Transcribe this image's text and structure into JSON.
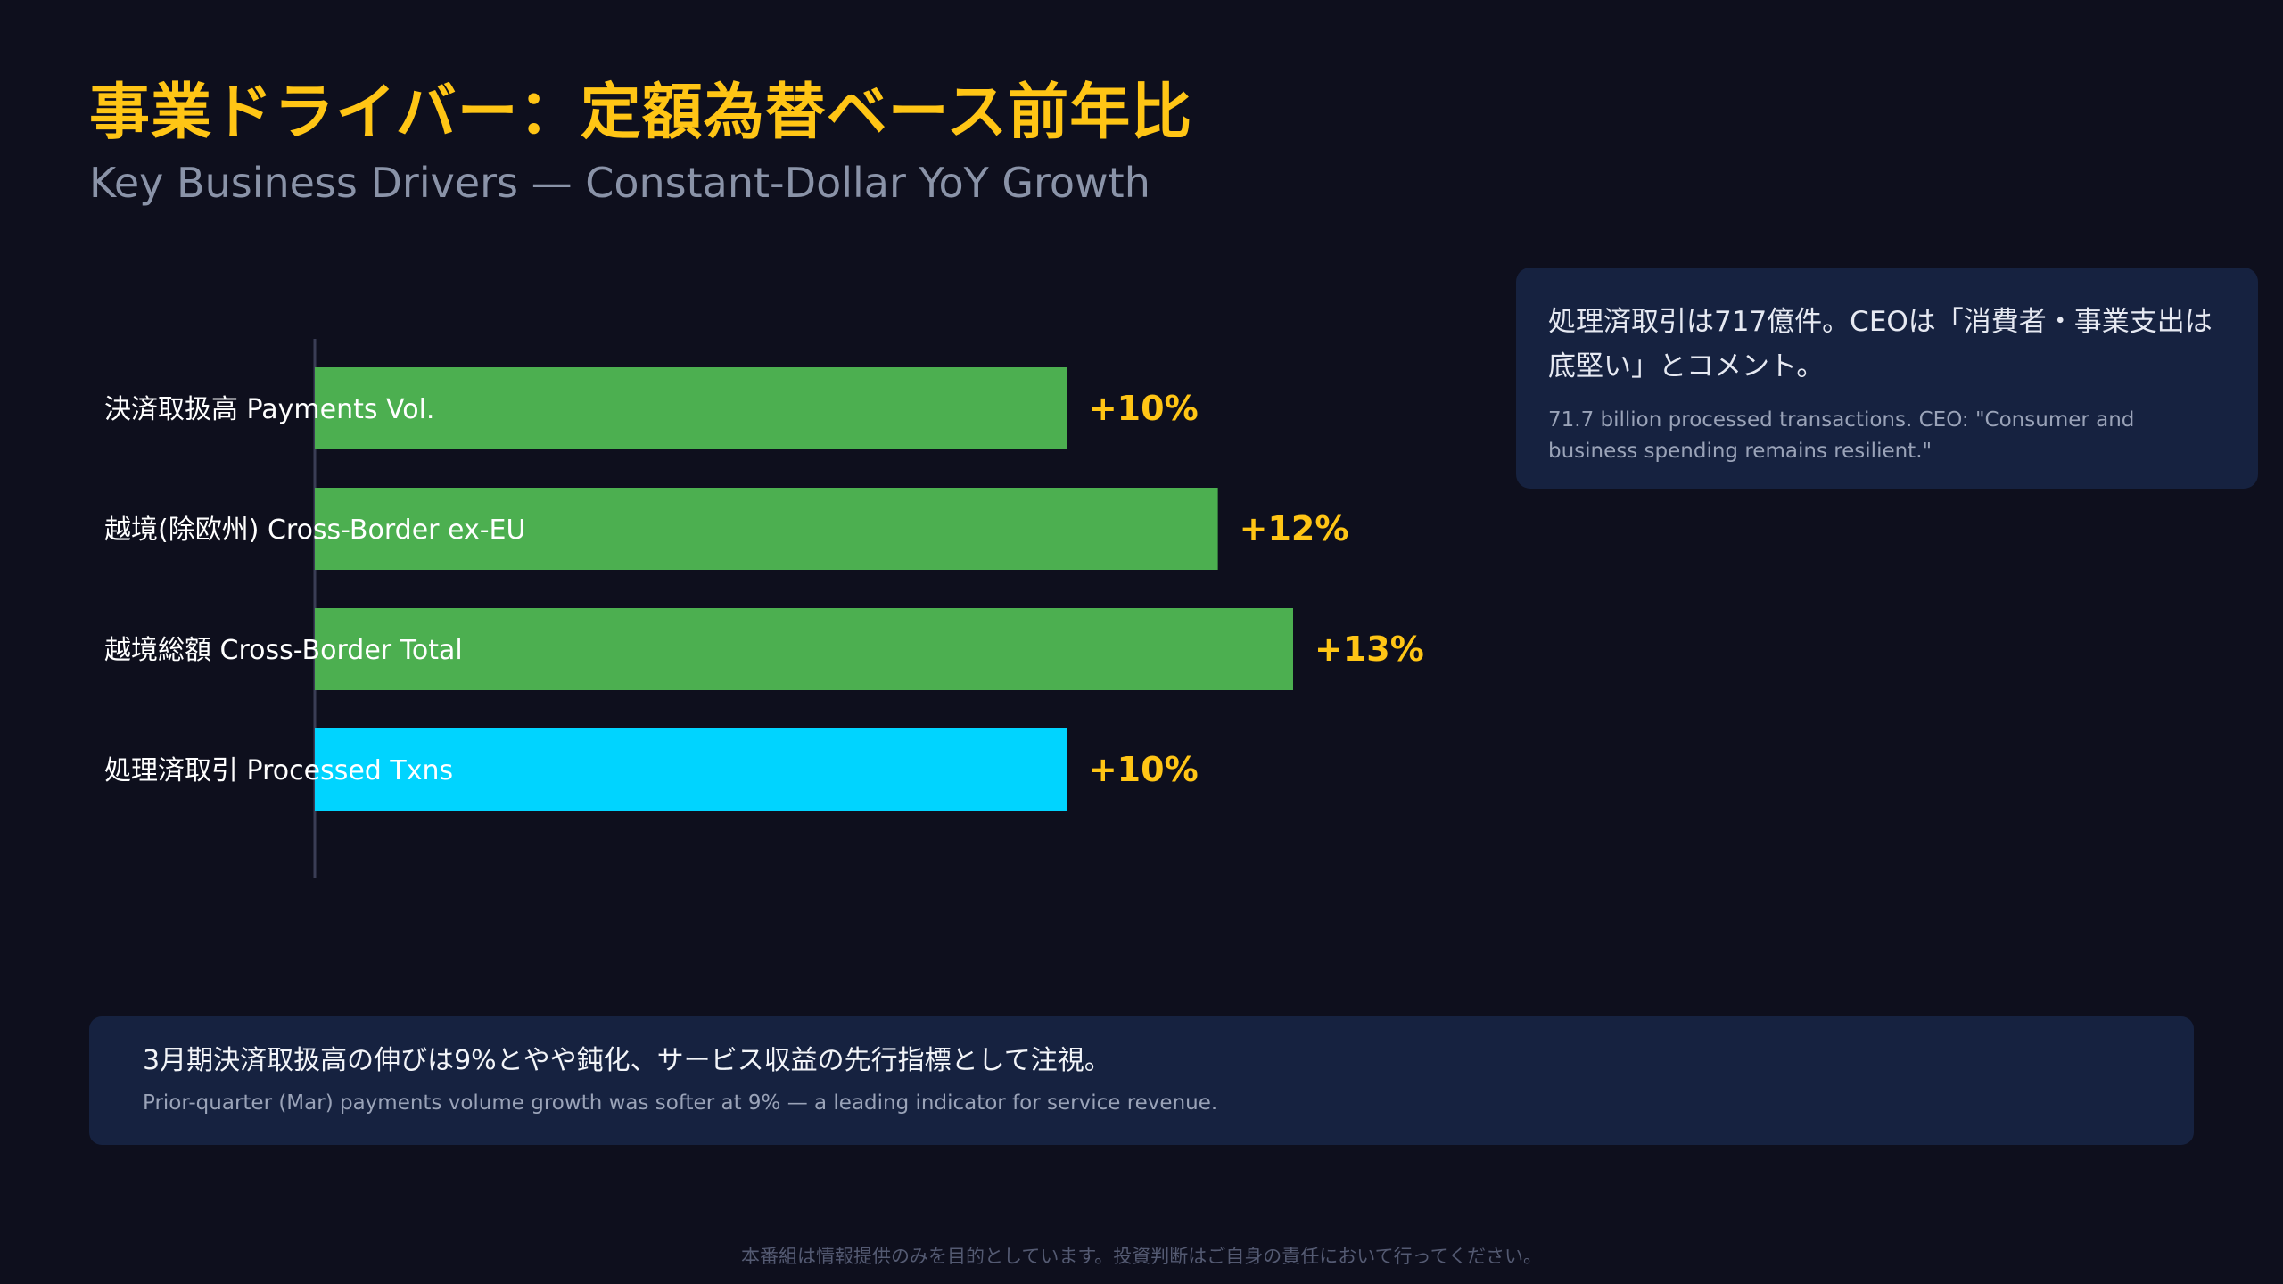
{
  "header": {
    "title": "事業ドライバー：定額為替ベース前年比",
    "subtitle": "Key Business Drivers — Constant-Dollar YoY Growth"
  },
  "chart_data": {
    "type": "bar",
    "orientation": "horizontal",
    "categories": [
      "決済取扱高 Payments Vol.",
      "越境(除欧州) Cross-Border ex-EU",
      "越境総額 Cross-Border Total",
      "処理済取引 Processed Txns"
    ],
    "values": [
      10,
      12,
      13,
      10
    ],
    "value_labels": [
      "+10%",
      "+12%",
      "+13%",
      "+10%"
    ],
    "colors": [
      "#4caf50",
      "#4caf50",
      "#4caf50",
      "#00d4ff"
    ],
    "label_color": "#ffc515",
    "xlim": [
      0,
      13
    ],
    "grid": false,
    "legend": "none"
  },
  "note": {
    "jp": "処理済取引は717億件。CEOは「消費者・事業支出は底堅い」とコメント。",
    "en": "71.7 billion processed transactions. CEO: \"Consumer and business spending remains resilient.\""
  },
  "footer_note": {
    "jp": "3月期決済取扱高の伸びは9%とやや鈍化、サービス収益の先行指標として注視。",
    "en": "Prior-quarter (Mar) payments volume growth was softer at 9% — a leading indicator for service revenue."
  },
  "disclaimer": "本番組は情報提供のみを目的としています。投資判断はご自身の責任において行ってください。",
  "colors": {
    "background": "#0e0f1d",
    "title": "#ffc515",
    "panel": "#162240"
  }
}
